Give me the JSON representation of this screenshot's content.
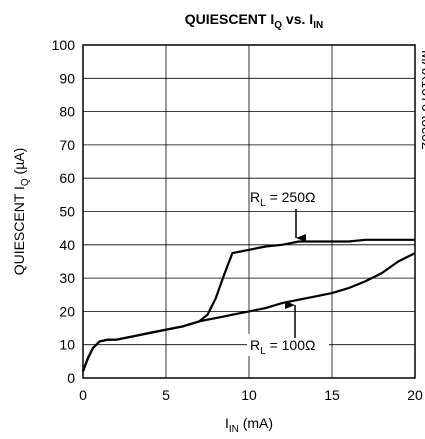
{
  "chart_data": {
    "type": "line",
    "title": [
      "QUIESCENT I",
      "Q",
      " vs. I",
      "IN"
    ],
    "x_label": [
      "I",
      "IN",
      " (mA)"
    ],
    "y_label": [
      "QUIESCENT I",
      "Q",
      " (µA)"
    ],
    "note": "MAX1676 toc02",
    "x": [
      0,
      0.3,
      0.6,
      1,
      1.5,
      2,
      3,
      4,
      5,
      6,
      7,
      7.5,
      8,
      8.5,
      9,
      9.5,
      10,
      11,
      12,
      13,
      14,
      15,
      16,
      17,
      18,
      19,
      20
    ],
    "series": [
      {
        "name": [
          "R",
          "L",
          " = 250Ω"
        ],
        "color": "#000000",
        "values": [
          2,
          6,
          9,
          11,
          11.5,
          11.5,
          12.5,
          13.5,
          14.5,
          15.5,
          17,
          19,
          24,
          31,
          37.5,
          38,
          38.5,
          39.5,
          40,
          41,
          41,
          41,
          41,
          41.5,
          41.5,
          41.5,
          41.5
        ]
      },
      {
        "name": [
          "R",
          "L",
          " = 100Ω"
        ],
        "color": "#000000",
        "values": [
          2,
          6,
          9,
          11,
          11.5,
          11.5,
          12.5,
          13.5,
          14.5,
          15.5,
          17,
          17.5,
          18,
          18.5,
          19,
          19.5,
          20,
          21,
          22.5,
          23.5,
          24.5,
          25.5,
          27,
          29,
          31.5,
          35,
          37.5
        ]
      }
    ],
    "xlim": [
      0,
      20
    ],
    "xticks": [
      0,
      5,
      10,
      15,
      20
    ],
    "ylim": [
      0,
      100
    ],
    "yticks": [
      0,
      10,
      20,
      30,
      40,
      50,
      60,
      70,
      80,
      90,
      100
    ],
    "grid": true
  }
}
